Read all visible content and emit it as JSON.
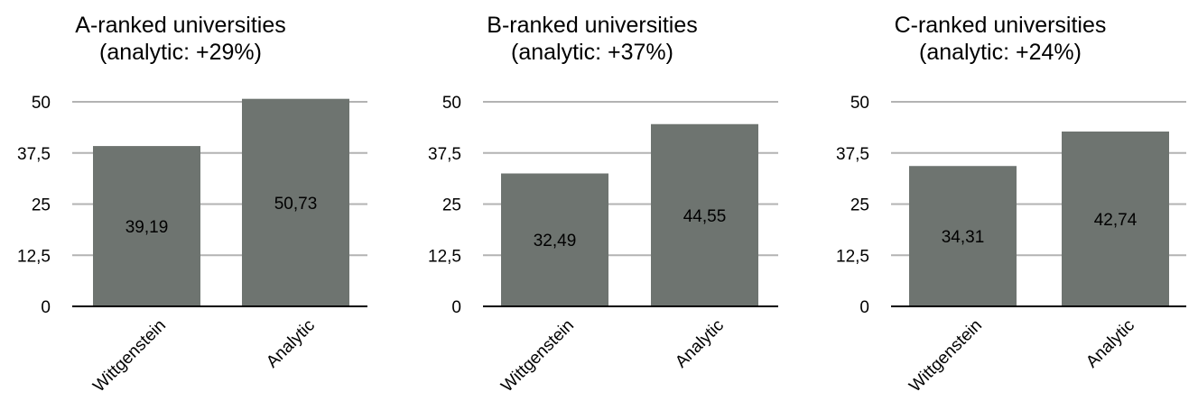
{
  "chart_data": [
    {
      "type": "bar",
      "title_lines": [
        "A-ranked universities",
        "(analytic: +29%)"
      ],
      "categories": [
        "Wittgenstein",
        "Analytic"
      ],
      "values": [
        39.19,
        50.73
      ],
      "data_labels": [
        "39,19",
        "50,73"
      ],
      "ylim": [
        0,
        50
      ],
      "yticks": [
        0,
        12.5,
        25,
        37.5,
        50
      ],
      "ytick_labels": [
        "0",
        "12,5",
        "25",
        "37,5",
        "50"
      ],
      "grid": true,
      "bar_color": "#6e7470"
    },
    {
      "type": "bar",
      "title_lines": [
        "B-ranked universities",
        "(analytic: +37%)"
      ],
      "categories": [
        "Wittgenstein",
        "Analytic"
      ],
      "values": [
        32.49,
        44.55
      ],
      "data_labels": [
        "32,49",
        "44,55"
      ],
      "ylim": [
        0,
        50
      ],
      "yticks": [
        0,
        12.5,
        25,
        37.5,
        50
      ],
      "ytick_labels": [
        "0",
        "12,5",
        "25",
        "37,5",
        "50"
      ],
      "grid": true,
      "bar_color": "#6e7470"
    },
    {
      "type": "bar",
      "title_lines": [
        "C-ranked universities",
        "(analytic: +24%)"
      ],
      "categories": [
        "Wittgenstein",
        "Analytic"
      ],
      "values": [
        34.31,
        42.74
      ],
      "data_labels": [
        "34,31",
        "42,74"
      ],
      "ylim": [
        0,
        50
      ],
      "yticks": [
        0,
        12.5,
        25,
        37.5,
        50
      ],
      "ytick_labels": [
        "0",
        "12,5",
        "25",
        "37,5",
        "50"
      ],
      "grid": true,
      "bar_color": "#6e7470"
    }
  ]
}
